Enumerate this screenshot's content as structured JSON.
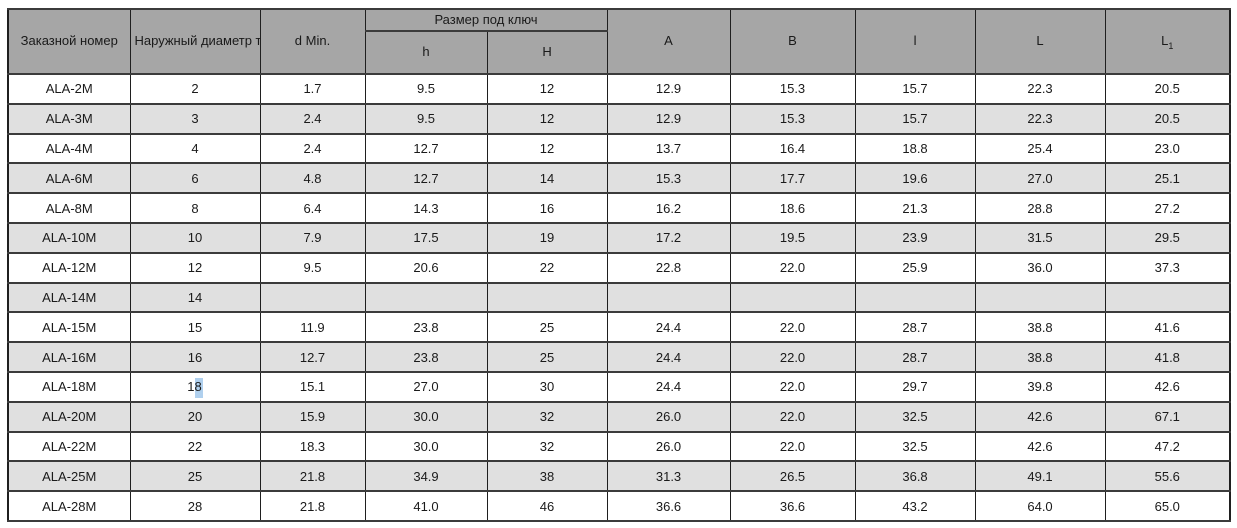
{
  "colors": {
    "header_bg": "#a6a6a6",
    "stripe_row_bg": "#e0e0e0",
    "plain_row_bg": "#ffffff",
    "border_horizontal": "#3b3b3b",
    "border_vertical": "#1f1f1f",
    "text": "#1a1a1a",
    "text_selection_highlight": "#b0d0ee"
  },
  "table": {
    "header": {
      "order_number": "Заказной номер",
      "outer_diameter": "Наружный диаметр трубы D",
      "d_min": "d Min.",
      "wrench_size_group": "Размер под ключ",
      "wrench_h": "h",
      "wrench_H": "H",
      "col_a": "A",
      "col_b": "B",
      "col_l": "l",
      "col_L": "L",
      "col_L1_base": "L",
      "col_L1_sub": "1"
    },
    "rows": [
      [
        "ALA-2M",
        "2",
        "1.7",
        "9.5",
        "12",
        "12.9",
        "15.3",
        "15.7",
        "22.3",
        "20.5"
      ],
      [
        "ALA-3M",
        "3",
        "2.4",
        "9.5",
        "12",
        "12.9",
        "15.3",
        "15.7",
        "22.3",
        "20.5"
      ],
      [
        "ALA-4M",
        "4",
        "2.4",
        "12.7",
        "12",
        "13.7",
        "16.4",
        "18.8",
        "25.4",
        "23.0"
      ],
      [
        "ALA-6M",
        "6",
        "4.8",
        "12.7",
        "14",
        "15.3",
        "17.7",
        "19.6",
        "27.0",
        "25.1"
      ],
      [
        "ALA-8M",
        "8",
        "6.4",
        "14.3",
        "16",
        "16.2",
        "18.6",
        "21.3",
        "28.8",
        "27.2"
      ],
      [
        "ALA-10M",
        "10",
        "7.9",
        "17.5",
        "19",
        "17.2",
        "19.5",
        "23.9",
        "31.5",
        "29.5"
      ],
      [
        "ALA-12M",
        "12",
        "9.5",
        "20.6",
        "22",
        "22.8",
        "22.0",
        "25.9",
        "36.0",
        "37.3"
      ],
      [
        "ALA-14M",
        "14",
        "",
        "",
        "",
        "",
        "",
        "",
        "",
        ""
      ],
      [
        "ALA-15M",
        "15",
        "11.9",
        "23.8",
        "25",
        "24.4",
        "22.0",
        "28.7",
        "38.8",
        "41.6"
      ],
      [
        "ALA-16M",
        "16",
        "12.7",
        "23.8",
        "25",
        "24.4",
        "22.0",
        "28.7",
        "38.8",
        "41.8"
      ],
      [
        "ALA-18M",
        "18",
        "15.1",
        "27.0",
        "30",
        "24.4",
        "22.0",
        "29.7",
        "39.8",
        "42.6"
      ],
      [
        "ALA-20M",
        "20",
        "15.9",
        "30.0",
        "32",
        "26.0",
        "22.0",
        "32.5",
        "42.6",
        "67.1"
      ],
      [
        "ALA-22M",
        "22",
        "18.3",
        "30.0",
        "32",
        "26.0",
        "22.0",
        "32.5",
        "42.6",
        "47.2"
      ],
      [
        "ALA-25M",
        "25",
        "21.8",
        "34.9",
        "38",
        "31.3",
        "26.5",
        "36.8",
        "49.1",
        "55.6"
      ],
      [
        "ALA-28M",
        "28",
        "21.8",
        "41.0",
        "46",
        "36.6",
        "36.6",
        "43.2",
        "64.0",
        "65.0"
      ]
    ],
    "selection": {
      "row_index": 10,
      "col_index": 1,
      "char_index": 1
    }
  }
}
